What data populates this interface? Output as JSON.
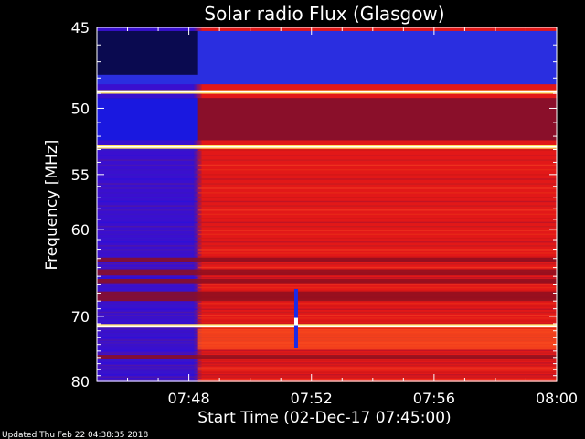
{
  "chart_data": {
    "type": "heatmap",
    "title": "Solar radio Flux (Glasgow)",
    "xlabel": "Start Time (02-Dec-17 07:45:00)",
    "ylabel": "Frequency [MHz]",
    "xlim": [
      "07:45",
      "08:00"
    ],
    "ylim": [
      45,
      80
    ],
    "y_inverted": true,
    "x_ticks": [
      "07:48",
      "07:52",
      "07:56",
      "08:00"
    ],
    "y_ticks": [
      45,
      50,
      55,
      60,
      70,
      80
    ],
    "y_scale": "reciprocal",
    "colormap": "blue-red-yellow-white",
    "data_gap": {
      "start": "07:45",
      "end": "07:48.3"
    },
    "bright_lines_mhz": [
      48.9,
      52.8,
      71.3
    ],
    "burst": {
      "time": "07:51.5",
      "freq_range_mhz": [
        66.5,
        74.5
      ],
      "peak_mhz": 70.7
    },
    "colors": {
      "background": "#000000",
      "low": "#3a0fcf",
      "mid": "#e21818",
      "high": "#ffe060",
      "max": "#ffffff"
    }
  },
  "footer": {
    "updated": "Updated Thu Feb 22 04:38:35 2018"
  }
}
